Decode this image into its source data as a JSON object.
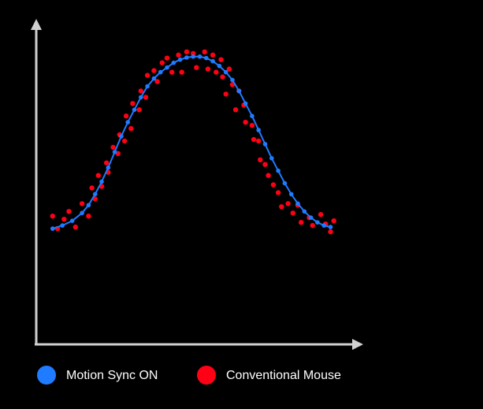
{
  "chart_data": {
    "type": "scatter",
    "title": "",
    "xlabel": "",
    "ylabel": "",
    "xlim": [
      0,
      100
    ],
    "ylim": [
      0,
      100
    ],
    "grid": false,
    "legend_position": "bottom-left",
    "series": [
      {
        "name": "Motion Sync ON",
        "color": "#1f7bff",
        "style": "line-with-markers",
        "points": [
          [
            5,
            37
          ],
          [
            8,
            38
          ],
          [
            11,
            39.5
          ],
          [
            14,
            42
          ],
          [
            16,
            44.5
          ],
          [
            18,
            48
          ],
          [
            20,
            52
          ],
          [
            22,
            56.5
          ],
          [
            24,
            61.5
          ],
          [
            26,
            66.5
          ],
          [
            28,
            71
          ],
          [
            30,
            75
          ],
          [
            32,
            79
          ],
          [
            34,
            82.5
          ],
          [
            36,
            85
          ],
          [
            38,
            87
          ],
          [
            40,
            88.5
          ],
          [
            42,
            90
          ],
          [
            44,
            91
          ],
          [
            46,
            91.7
          ],
          [
            48,
            92
          ],
          [
            50,
            92
          ],
          [
            52,
            91.5
          ],
          [
            54,
            90.5
          ],
          [
            56,
            89
          ],
          [
            58,
            87
          ],
          [
            60,
            84.5
          ],
          [
            62,
            81
          ],
          [
            64,
            77
          ],
          [
            66,
            73
          ],
          [
            68,
            68.5
          ],
          [
            70,
            64
          ],
          [
            72,
            59.5
          ],
          [
            74,
            55.5
          ],
          [
            76,
            51.5
          ],
          [
            78,
            48
          ],
          [
            80,
            45
          ],
          [
            82,
            42.5
          ],
          [
            84,
            40.5
          ],
          [
            86,
            39
          ],
          [
            88,
            38
          ],
          [
            90,
            37.5
          ]
        ]
      },
      {
        "name": "Conventional Mouse",
        "color": "#ff0014",
        "style": "markers",
        "points": [
          [
            5,
            41
          ],
          [
            6.5,
            37
          ],
          [
            8.5,
            40
          ],
          [
            10,
            42.5
          ],
          [
            12,
            37.5
          ],
          [
            14,
            45
          ],
          [
            16,
            41
          ],
          [
            17,
            50
          ],
          [
            18,
            46.5
          ],
          [
            19,
            54
          ],
          [
            20,
            50.5
          ],
          [
            21.5,
            58
          ],
          [
            22,
            55
          ],
          [
            23.5,
            63
          ],
          [
            25,
            61
          ],
          [
            25.5,
            67
          ],
          [
            27,
            65
          ],
          [
            27.5,
            73
          ],
          [
            29,
            69
          ],
          [
            29.5,
            77
          ],
          [
            31.5,
            75
          ],
          [
            32,
            81
          ],
          [
            33.5,
            79
          ],
          [
            34,
            86
          ],
          [
            36,
            87.5
          ],
          [
            37,
            84
          ],
          [
            38.5,
            90
          ],
          [
            40,
            91.5
          ],
          [
            41.5,
            87
          ],
          [
            43.5,
            92.5
          ],
          [
            44.5,
            87
          ],
          [
            46,
            93.5
          ],
          [
            48,
            93
          ],
          [
            49,
            88.5
          ],
          [
            51.5,
            93.5
          ],
          [
            52.5,
            88
          ],
          [
            54,
            92.5
          ],
          [
            55,
            87
          ],
          [
            56.5,
            91
          ],
          [
            57,
            85.5
          ],
          [
            58,
            80
          ],
          [
            59,
            88
          ],
          [
            60,
            83
          ],
          [
            61,
            75
          ],
          [
            62,
            81
          ],
          [
            63.5,
            76.5
          ],
          [
            64,
            71
          ],
          [
            66,
            70
          ],
          [
            66.5,
            65.5
          ],
          [
            68,
            65
          ],
          [
            68.5,
            59
          ],
          [
            70,
            57.5
          ],
          [
            71,
            54
          ],
          [
            72.5,
            51
          ],
          [
            74,
            48.5
          ],
          [
            75,
            44
          ],
          [
            77,
            45
          ],
          [
            78.5,
            42
          ],
          [
            80,
            44.5
          ],
          [
            81,
            39
          ],
          [
            83.5,
            40.5
          ],
          [
            84.5,
            38
          ],
          [
            87,
            41.5
          ],
          [
            88.5,
            38.5
          ],
          [
            90,
            36
          ],
          [
            91,
            39.5
          ]
        ]
      }
    ]
  },
  "legend": {
    "items": [
      {
        "name": "Motion Sync ON",
        "color": "#1f7bff"
      },
      {
        "name": "Conventional Mouse",
        "color": "#ff0014"
      }
    ]
  }
}
